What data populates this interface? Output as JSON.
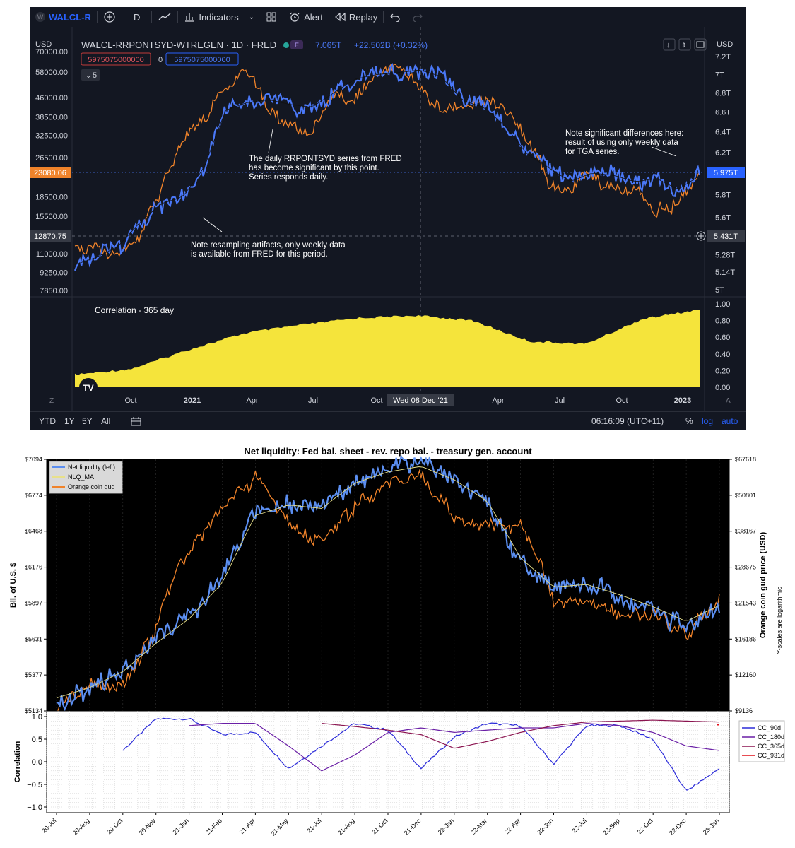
{
  "tv": {
    "toolbar": {
      "logo": "W",
      "symbol": "WALCL-R",
      "add_symbol_icon": "plus-circle-icon",
      "interval": "D",
      "chart_type_icon": "line-chart-icon",
      "indicators": "Indicators",
      "templates_icon": "grid-icon",
      "alert": "Alert",
      "replay": "Replay",
      "undo_icon": "undo-icon",
      "redo_icon": "redo-icon"
    },
    "header": {
      "currency_left": "USD",
      "currency_right": "USD",
      "title": "WALCL-RRPONTSYD-WTREGEN · 1D · FRED",
      "e_badge": "E",
      "price": "7.065T",
      "change": "+22.502B (+0.32%)",
      "input_a": "5975075000000",
      "input_zero": "0",
      "input_b": "5975075000000",
      "collapse_count": "5"
    },
    "left_axis": [
      "70000.00",
      "58000.00",
      "46000.00",
      "38500.00",
      "32500.00",
      "26500.00",
      "18500.00",
      "15500.00",
      "11000.00",
      "9250.00",
      "7850.00"
    ],
    "right_axis": [
      "7.2T",
      "7T",
      "6.8T",
      "6.6T",
      "6.4T",
      "6.2T",
      "5.8T",
      "5.6T",
      "5.28T",
      "5.14T",
      "5T"
    ],
    "orange_label": "23080.06",
    "blue_label": "5.975T",
    "crosshair_left": "12870.75",
    "crosshair_right": "5.431T",
    "annotations": {
      "a1": [
        "The daily RRPONTSYD series from FRED",
        "has become significant by this point.",
        "Series responds daily."
      ],
      "a2": [
        "Note resampling artifacts, only weekly data",
        "is available from FRED for this period."
      ],
      "a3": [
        "Note significant differences here:",
        "result of using only weekly data",
        "for TGA series."
      ]
    },
    "correlation_label": "Correlation - 365 day",
    "corr_axis": [
      "1.00",
      "0.80",
      "0.60",
      "0.40",
      "0.20",
      "0.00"
    ],
    "time_axis": [
      "Oct",
      "2021",
      "Apr",
      "Jul",
      "Oct",
      "Apr",
      "Jul",
      "Oct",
      "2023"
    ],
    "crosshair_date": "Wed 08 Dec '21",
    "z_btn": "Z",
    "a_btn": "A",
    "footer": {
      "ranges": [
        "YTD",
        "1Y",
        "5Y",
        "All"
      ],
      "time": "06:16:09 (UTC+11)",
      "pct": "%",
      "log": "log",
      "auto": "auto"
    },
    "colors": {
      "orange": "#f0832a",
      "blue": "#4a78f7",
      "yellow": "#f5e43b",
      "panel": "#131722"
    }
  },
  "mpl": {
    "title": "Net liquidity: Fed bal. sheet - rev. repo bal. - treasury gen. account",
    "left_ylabel": "Bil. of U.S. $",
    "right_ylabel": "Orange coin gud price (USD)",
    "side_note": "Y-scales are logarithmic",
    "left_ticks": [
      "$7094",
      "$6774",
      "$6468",
      "$6176",
      "$5897",
      "$5631",
      "$5377",
      "$5134"
    ],
    "right_ticks": [
      "$67618",
      "$50801",
      "$38167",
      "$28675",
      "$21543",
      "$16186",
      "$12160",
      "$9136"
    ],
    "legend": [
      "Net liquidity (left)",
      "NLQ_MA",
      "Orange coin gud"
    ],
    "corr_ylabel": "Correlation",
    "corr_ticks": [
      "1.0",
      "0.5",
      "0.0",
      "−0.5",
      "−1.0"
    ],
    "corr_legend": [
      "CC_90d",
      "CC_180d",
      "CC_365d",
      "CC_931d"
    ],
    "x_ticks": [
      "20-Jul",
      "20-Aug",
      "20-Oct",
      "20-Nov",
      "21-Jan",
      "21-Feb",
      "21-Apr",
      "21-May",
      "21-Jul",
      "21-Aug",
      "21-Oct",
      "21-Dec",
      "22-Jan",
      "22-Mar",
      "22-Apr",
      "22-Jun",
      "22-Jul",
      "22-Sep",
      "22-Oct",
      "22-Dec",
      "23-Jan"
    ]
  },
  "chart_data": [
    {
      "type": "line",
      "title": "WALCL-RRPONTSYD-WTREGEN · 1D · FRED",
      "x": [
        "2020-08",
        "2020-09",
        "2020-10",
        "2020-11",
        "2020-12",
        "2021-01",
        "2021-02",
        "2021-03",
        "2021-04",
        "2021-05",
        "2021-06",
        "2021-07",
        "2021-08",
        "2021-09",
        "2021-10",
        "2021-11",
        "2021-12",
        "2022-01",
        "2022-02",
        "2022-03",
        "2022-04",
        "2022-05",
        "2022-06",
        "2022-07",
        "2022-08",
        "2022-09",
        "2022-10",
        "2022-11",
        "2022-12",
        "2023-01"
      ],
      "series": [
        {
          "name": "WALCL-RRPONTSYD-WTREGEN",
          "axis": "right",
          "values": [
            5200000000000.0,
            5260000000000.0,
            5350000000000.0,
            5550000000000.0,
            5720000000000.0,
            5780000000000.0,
            6050000000000.0,
            6620000000000.0,
            6700000000000.0,
            6730000000000.0,
            6680000000000.0,
            6650000000000.0,
            6800000000000.0,
            6950000000000.0,
            7000000000000.0,
            7020000000000.0,
            7050000000000.0,
            6980000000000.0,
            6720000000000.0,
            6650000000000.0,
            6450000000000.0,
            6180000000000.0,
            6050000000000.0,
            5920000000000.0,
            6000000000000.0,
            5980000000000.0,
            5920000000000.0,
            5950000000000.0,
            5850000000000.0,
            5975000000000.0
          ]
        },
        {
          "axis": "left",
          "values": [
            11500,
            11300,
            10600,
            13100,
            19000,
            32000,
            38000,
            51000,
            58500,
            40000,
            36000,
            33000,
            46000,
            44000,
            56000,
            62000,
            49000,
            40000,
            42000,
            44000,
            41000,
            32000,
            21000,
            20000,
            22500,
            19500,
            20000,
            16500,
            16800,
            23080
          ]
        }
      ],
      "ylabel": "USD",
      "legend": "none"
    },
    {
      "type": "area",
      "title": "Correlation - 365 day",
      "x": [
        "2020-08",
        "2020-10",
        "2021-01",
        "2021-04",
        "2021-07",
        "2021-10",
        "2021-12",
        "2022-03",
        "2022-06",
        "2022-08",
        "2022-10",
        "2023-01"
      ],
      "series": [
        {
          "values": [
            0.15,
            0.22,
            0.45,
            0.65,
            0.75,
            0.83,
            0.86,
            0.8,
            0.55,
            0.52,
            0.82,
            0.93
          ]
        }
      ],
      "ylim": [
        0,
        1.0
      ]
    },
    {
      "type": "line",
      "title": "Net liquidity: Fed bal. sheet - rev. repo bal. - treasury gen. account",
      "x": [
        "2020-07",
        "2020-08",
        "2020-10",
        "2020-11",
        "2021-01",
        "2021-02",
        "2021-04",
        "2021-05",
        "2021-07",
        "2021-08",
        "2021-10",
        "2021-12",
        "2022-01",
        "2022-03",
        "2022-04",
        "2022-06",
        "2022-07",
        "2022-09",
        "2022-10",
        "2022-12",
        "2023-01"
      ],
      "series": [
        {
          "name": "Net liquidity (left)",
          "values": [
            5200,
            5300,
            5420,
            5620,
            5800,
            6100,
            6650,
            6700,
            6650,
            6900,
            7000,
            7050,
            6900,
            6700,
            6200,
            6000,
            6050,
            5950,
            5850,
            5700,
            5900
          ]
        },
        {
          "name": "NLQ_MA",
          "values": [
            5220,
            5290,
            5400,
            5600,
            5780,
            6050,
            6600,
            6690,
            6660,
            6880,
            6980,
            7030,
            6910,
            6720,
            6250,
            6020,
            6040,
            5960,
            5870,
            5760,
            5880
          ]
        },
        {
          "name": "Orange coin gud",
          "values": [
            9300,
            11500,
            11000,
            17000,
            33000,
            45000,
            58000,
            40000,
            34000,
            46000,
            55000,
            60000,
            42000,
            40000,
            40000,
            22000,
            21500,
            20000,
            19500,
            16800,
            22500
          ]
        }
      ],
      "ylabel": "Bil. of U.S. $"
    },
    {
      "type": "line",
      "title": "",
      "x": [
        "2020-07",
        "2020-08",
        "2020-10",
        "2020-11",
        "2021-01",
        "2021-02",
        "2021-04",
        "2021-05",
        "2021-07",
        "2021-08",
        "2021-10",
        "2021-12",
        "2022-01",
        "2022-03",
        "2022-04",
        "2022-06",
        "2022-07",
        "2022-09",
        "2022-10",
        "2022-12",
        "2023-01"
      ],
      "series": [
        {
          "name": "CC_90d",
          "values": [
            null,
            null,
            0.25,
            0.95,
            0.95,
            0.6,
            0.65,
            -0.15,
            0.35,
            0.85,
            0.7,
            -0.15,
            0.55,
            0.85,
            0.8,
            -0.05,
            0.8,
            0.8,
            0.5,
            -0.65,
            -0.15
          ]
        },
        {
          "name": "CC_180d",
          "values": [
            null,
            null,
            null,
            null,
            0.8,
            0.85,
            0.85,
            0.35,
            -0.2,
            0.15,
            0.65,
            0.75,
            0.65,
            0.7,
            0.75,
            0.75,
            0.85,
            0.8,
            0.65,
            0.35,
            0.25
          ]
        },
        {
          "name": "CC_365d",
          "values": [
            null,
            null,
            null,
            null,
            null,
            null,
            null,
            null,
            0.85,
            0.78,
            0.7,
            0.6,
            0.3,
            0.45,
            0.65,
            0.8,
            0.88,
            0.9,
            0.92,
            0.9,
            0.88
          ]
        },
        {
          "name": "CC_931d",
          "values": [
            null,
            null,
            null,
            null,
            null,
            null,
            null,
            null,
            null,
            null,
            null,
            null,
            null,
            null,
            null,
            null,
            null,
            null,
            null,
            null,
            0.82
          ]
        }
      ],
      "ylabel": "Correlation",
      "ylim": [
        -1.1,
        1.1
      ],
      "legend": "right"
    }
  ]
}
